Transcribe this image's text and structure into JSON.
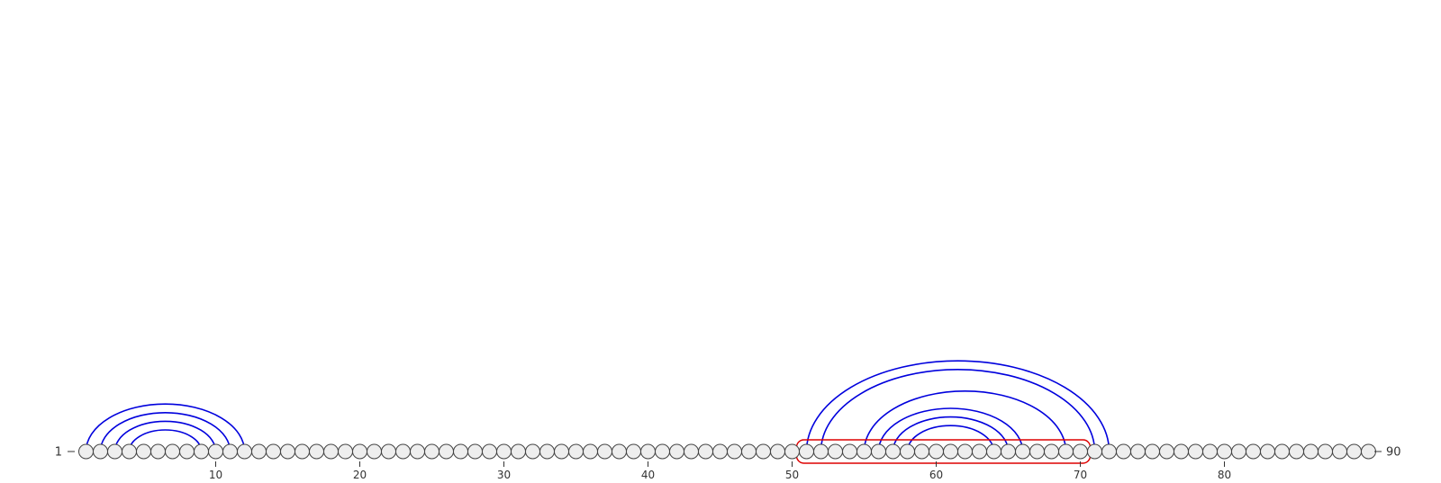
{
  "diagram": {
    "sequence_length": 90,
    "start_label": "1",
    "end_label": "90",
    "tick_labels": [
      "10",
      "20",
      "30",
      "40",
      "50",
      "60",
      "70",
      "80"
    ],
    "tick_positions": [
      10,
      20,
      30,
      40,
      50,
      60,
      70,
      80
    ],
    "pairs": [
      [
        1,
        12
      ],
      [
        2,
        11
      ],
      [
        3,
        10
      ],
      [
        4,
        9
      ],
      [
        51,
        72
      ],
      [
        52,
        71
      ],
      [
        55,
        69
      ],
      [
        56,
        66
      ],
      [
        57,
        65
      ],
      [
        58,
        64
      ]
    ],
    "highlight_region": {
      "start": 51,
      "end": 70
    },
    "colors": {
      "arc": "#0000dd",
      "highlight": "#dd0000",
      "node_fill": "#eeeeee",
      "node_stroke": "#444444",
      "axis": "#333333"
    }
  }
}
